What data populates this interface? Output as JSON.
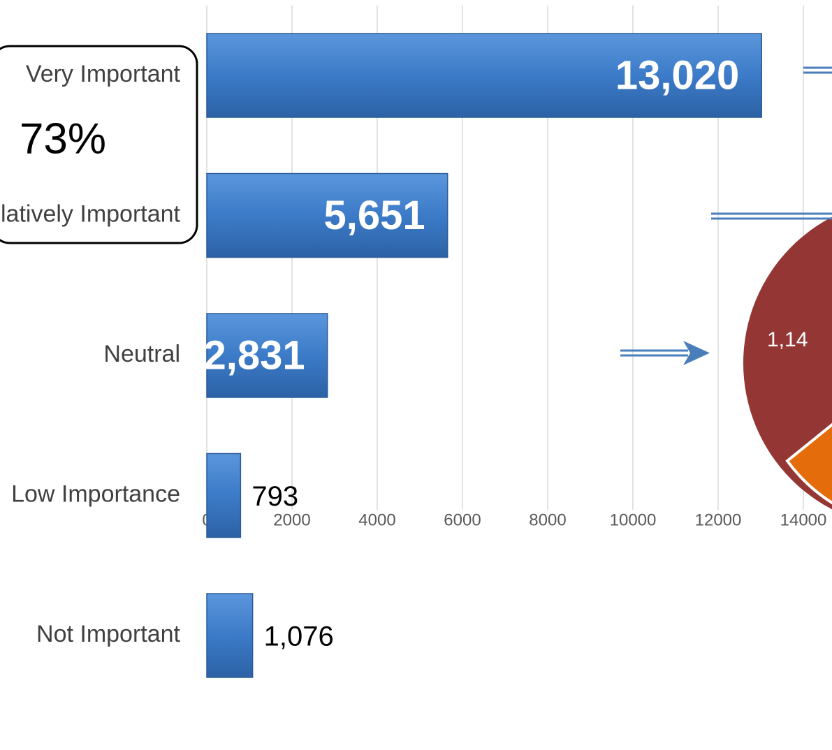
{
  "chart_data": {
    "type": "bar",
    "orientation": "horizontal",
    "categories": [
      "Very Important",
      "Relatively Important",
      "Neutral",
      "Low Importance",
      "Not Important"
    ],
    "values": [
      13020,
      5651,
      2831,
      793,
      1076
    ],
    "value_labels": [
      "13,020",
      "5,651",
      "2,831",
      "793",
      "1,076"
    ],
    "color": "#3c7bc8",
    "xlim": [
      0,
      14000
    ],
    "xticks": [
      0,
      2000,
      4000,
      6000,
      8000,
      10000,
      12000,
      14000
    ],
    "grid": true,
    "annotations": [
      "73%",
      "1,14"
    ]
  }
}
